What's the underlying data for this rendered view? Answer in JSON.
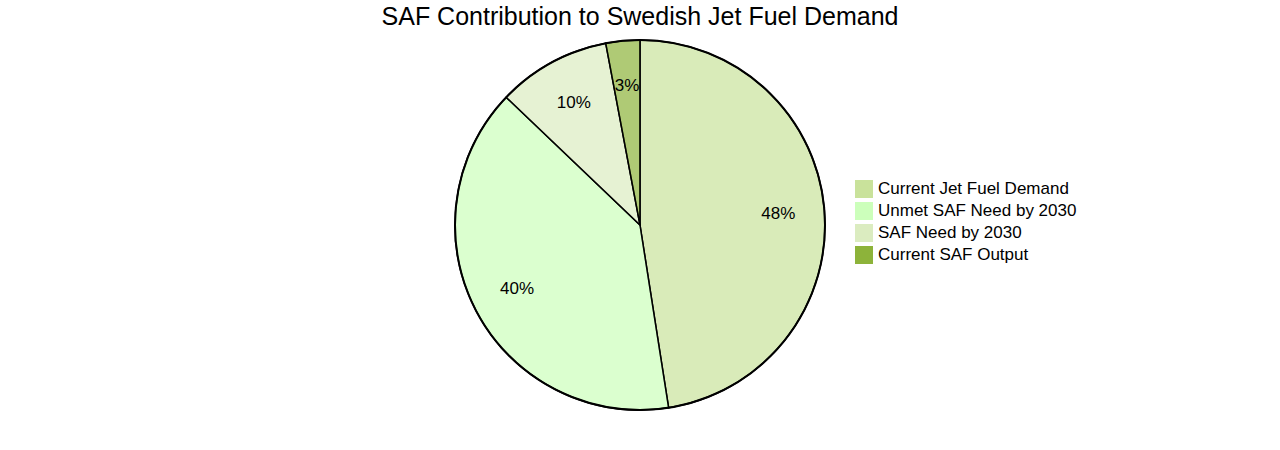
{
  "chart_data": {
    "type": "pie",
    "title": "SAF Contribution to Swedish Jet Fuel Demand",
    "categories": [
      "Current Jet Fuel Demand",
      "Unmet SAF Need by 2030",
      "SAF Need by 2030",
      "Current SAF Output"
    ],
    "values": [
      48,
      40,
      10,
      3
    ],
    "value_labels": [
      "48%",
      "40%",
      "10%",
      "3%"
    ],
    "colors": [
      "#c9e29b",
      "#ccffbb",
      "#dbecc0",
      "#8db33a"
    ],
    "data_labels": true,
    "legend": "right"
  }
}
